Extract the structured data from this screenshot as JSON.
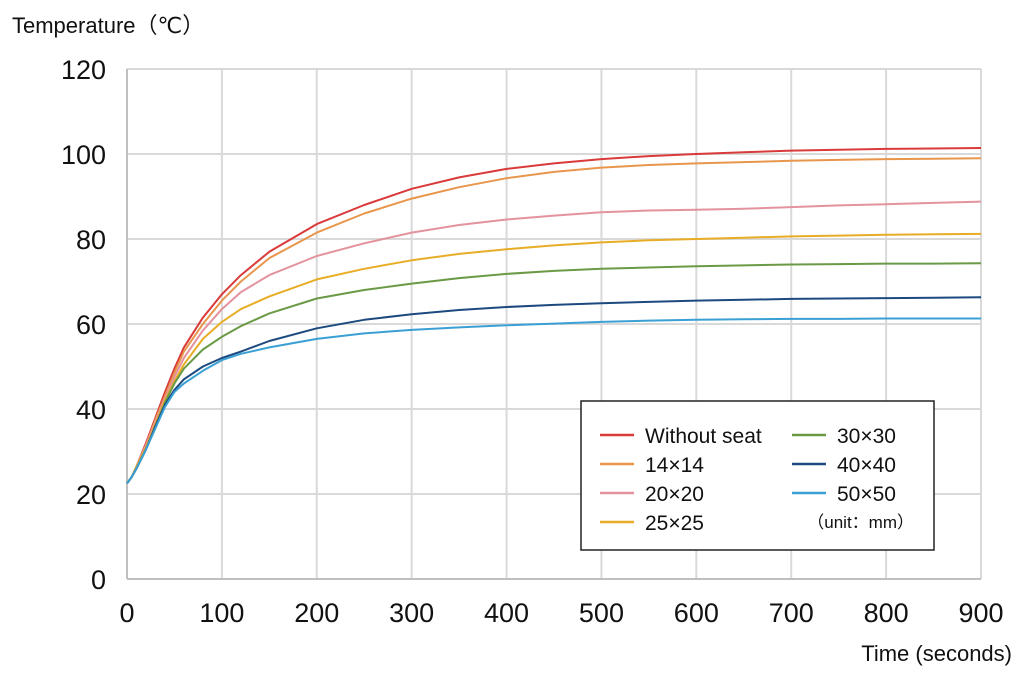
{
  "chart_data": {
    "type": "line",
    "ylabel": "Temperature（℃）",
    "xlabel": "Time (seconds)",
    "xlim": [
      0,
      900
    ],
    "ylim": [
      0,
      120
    ],
    "xticks": [
      0,
      100,
      200,
      300,
      400,
      500,
      600,
      700,
      800,
      900
    ],
    "yticks": [
      0,
      20,
      40,
      60,
      80,
      100,
      120
    ],
    "grid": true,
    "legend": {
      "position": "bottom-right",
      "note": "（unit：mm）"
    },
    "x": [
      0,
      5,
      10,
      20,
      30,
      40,
      50,
      60,
      80,
      100,
      120,
      150,
      200,
      250,
      300,
      350,
      400,
      450,
      500,
      550,
      600,
      650,
      700,
      750,
      800,
      850,
      900
    ],
    "series": [
      {
        "name": "Without seat",
        "color": "#d93a3a",
        "values": [
          22.5,
          24,
          26.5,
          32,
          38,
          44,
          49.5,
          54.5,
          61.5,
          67,
          71.5,
          77,
          83.5,
          88,
          91.8,
          94.5,
          96.5,
          97.8,
          98.8,
          99.5,
          100,
          100.4,
          100.8,
          101,
          101.2,
          101.3,
          101.4
        ]
      },
      {
        "name": "14×14",
        "color": "#e8964c",
        "values": [
          22.5,
          24,
          26.5,
          31.5,
          37.5,
          43,
          48.5,
          53.5,
          60,
          65.5,
          70,
          75.5,
          81.5,
          86,
          89.5,
          92.2,
          94.3,
          95.8,
          96.8,
          97.4,
          97.8,
          98.1,
          98.4,
          98.6,
          98.8,
          98.9,
          99
        ]
      },
      {
        "name": "20×20",
        "color": "#e3939d",
        "values": [
          22.5,
          24,
          26.5,
          31.5,
          37,
          42.5,
          47.5,
          52,
          58.5,
          63.5,
          67.5,
          71.5,
          76,
          79,
          81.5,
          83.3,
          84.6,
          85.5,
          86.3,
          86.7,
          86.9,
          87.1,
          87.5,
          87.9,
          88.2,
          88.5,
          88.8
        ]
      },
      {
        "name": "25×25",
        "color": "#e8ad26",
        "values": [
          22.5,
          24,
          26.5,
          31,
          36.5,
          42,
          46.5,
          50.5,
          56.5,
          60.5,
          63.5,
          66.5,
          70.5,
          73,
          75,
          76.5,
          77.6,
          78.5,
          79.2,
          79.7,
          80,
          80.3,
          80.6,
          80.8,
          81,
          81.1,
          81.2
        ]
      },
      {
        "name": "30×30",
        "color": "#6a9a46",
        "values": [
          22.5,
          24,
          26,
          30.5,
          36,
          41.5,
          46,
          49.5,
          54,
          57,
          59.5,
          62.5,
          66,
          68,
          69.5,
          70.8,
          71.8,
          72.5,
          73,
          73.3,
          73.6,
          73.8,
          74,
          74.1,
          74.2,
          74.2,
          74.3
        ]
      },
      {
        "name": "40×40",
        "color": "#1d4a7e",
        "values": [
          22.5,
          24,
          26,
          30.5,
          36,
          41,
          44.5,
          47,
          50,
          52,
          53.5,
          56,
          59,
          61,
          62.3,
          63.3,
          64,
          64.5,
          64.9,
          65.2,
          65.5,
          65.7,
          65.9,
          66,
          66.1,
          66.2,
          66.3
        ]
      },
      {
        "name": "50×50",
        "color": "#3aa0d4",
        "values": [
          22.5,
          24,
          26,
          30.5,
          35.5,
          40.5,
          44,
          46,
          49,
          51.5,
          53,
          54.5,
          56.5,
          57.8,
          58.6,
          59.2,
          59.7,
          60.1,
          60.5,
          60.8,
          61,
          61.1,
          61.2,
          61.2,
          61.3,
          61.3,
          61.3
        ]
      }
    ]
  }
}
